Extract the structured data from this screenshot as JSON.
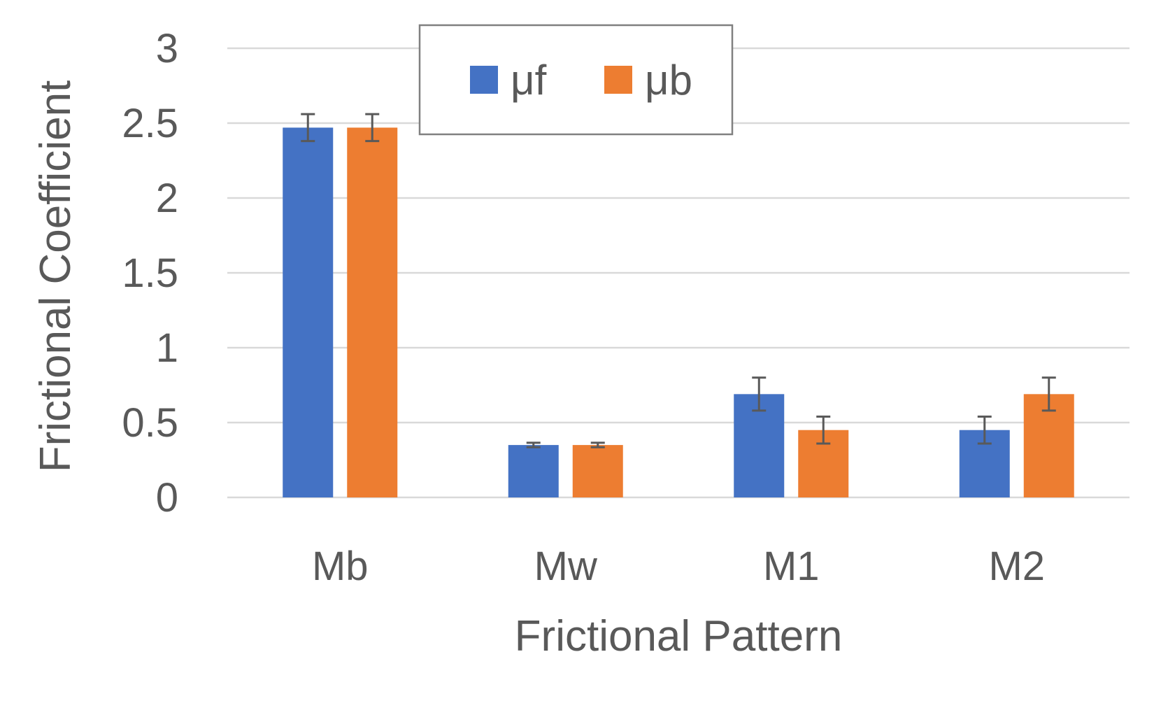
{
  "chart_data": {
    "type": "bar",
    "title": "",
    "xlabel": "Frictional Pattern",
    "ylabel": "Frictional Coefficient",
    "categories": [
      "Mb",
      "Mw",
      "M1",
      "M2"
    ],
    "series": [
      {
        "name": "μf",
        "color": "#4472c4",
        "values": [
          2.47,
          0.35,
          0.69,
          0.45
        ],
        "errors": [
          0.09,
          0.015,
          0.11,
          0.09
        ]
      },
      {
        "name": "μb",
        "color": "#ed7d31",
        "values": [
          2.47,
          0.35,
          0.45,
          0.69
        ],
        "errors": [
          0.09,
          0.015,
          0.09,
          0.11
        ]
      }
    ],
    "ylim": [
      0,
      3
    ],
    "yticks": [
      0,
      0.5,
      1,
      1.5,
      2,
      2.5,
      3
    ],
    "ytick_labels": [
      "0",
      "0.5",
      "1",
      "1.5",
      "2",
      "2.5",
      "3"
    ],
    "grid": true,
    "legend_position": "top-center"
  }
}
